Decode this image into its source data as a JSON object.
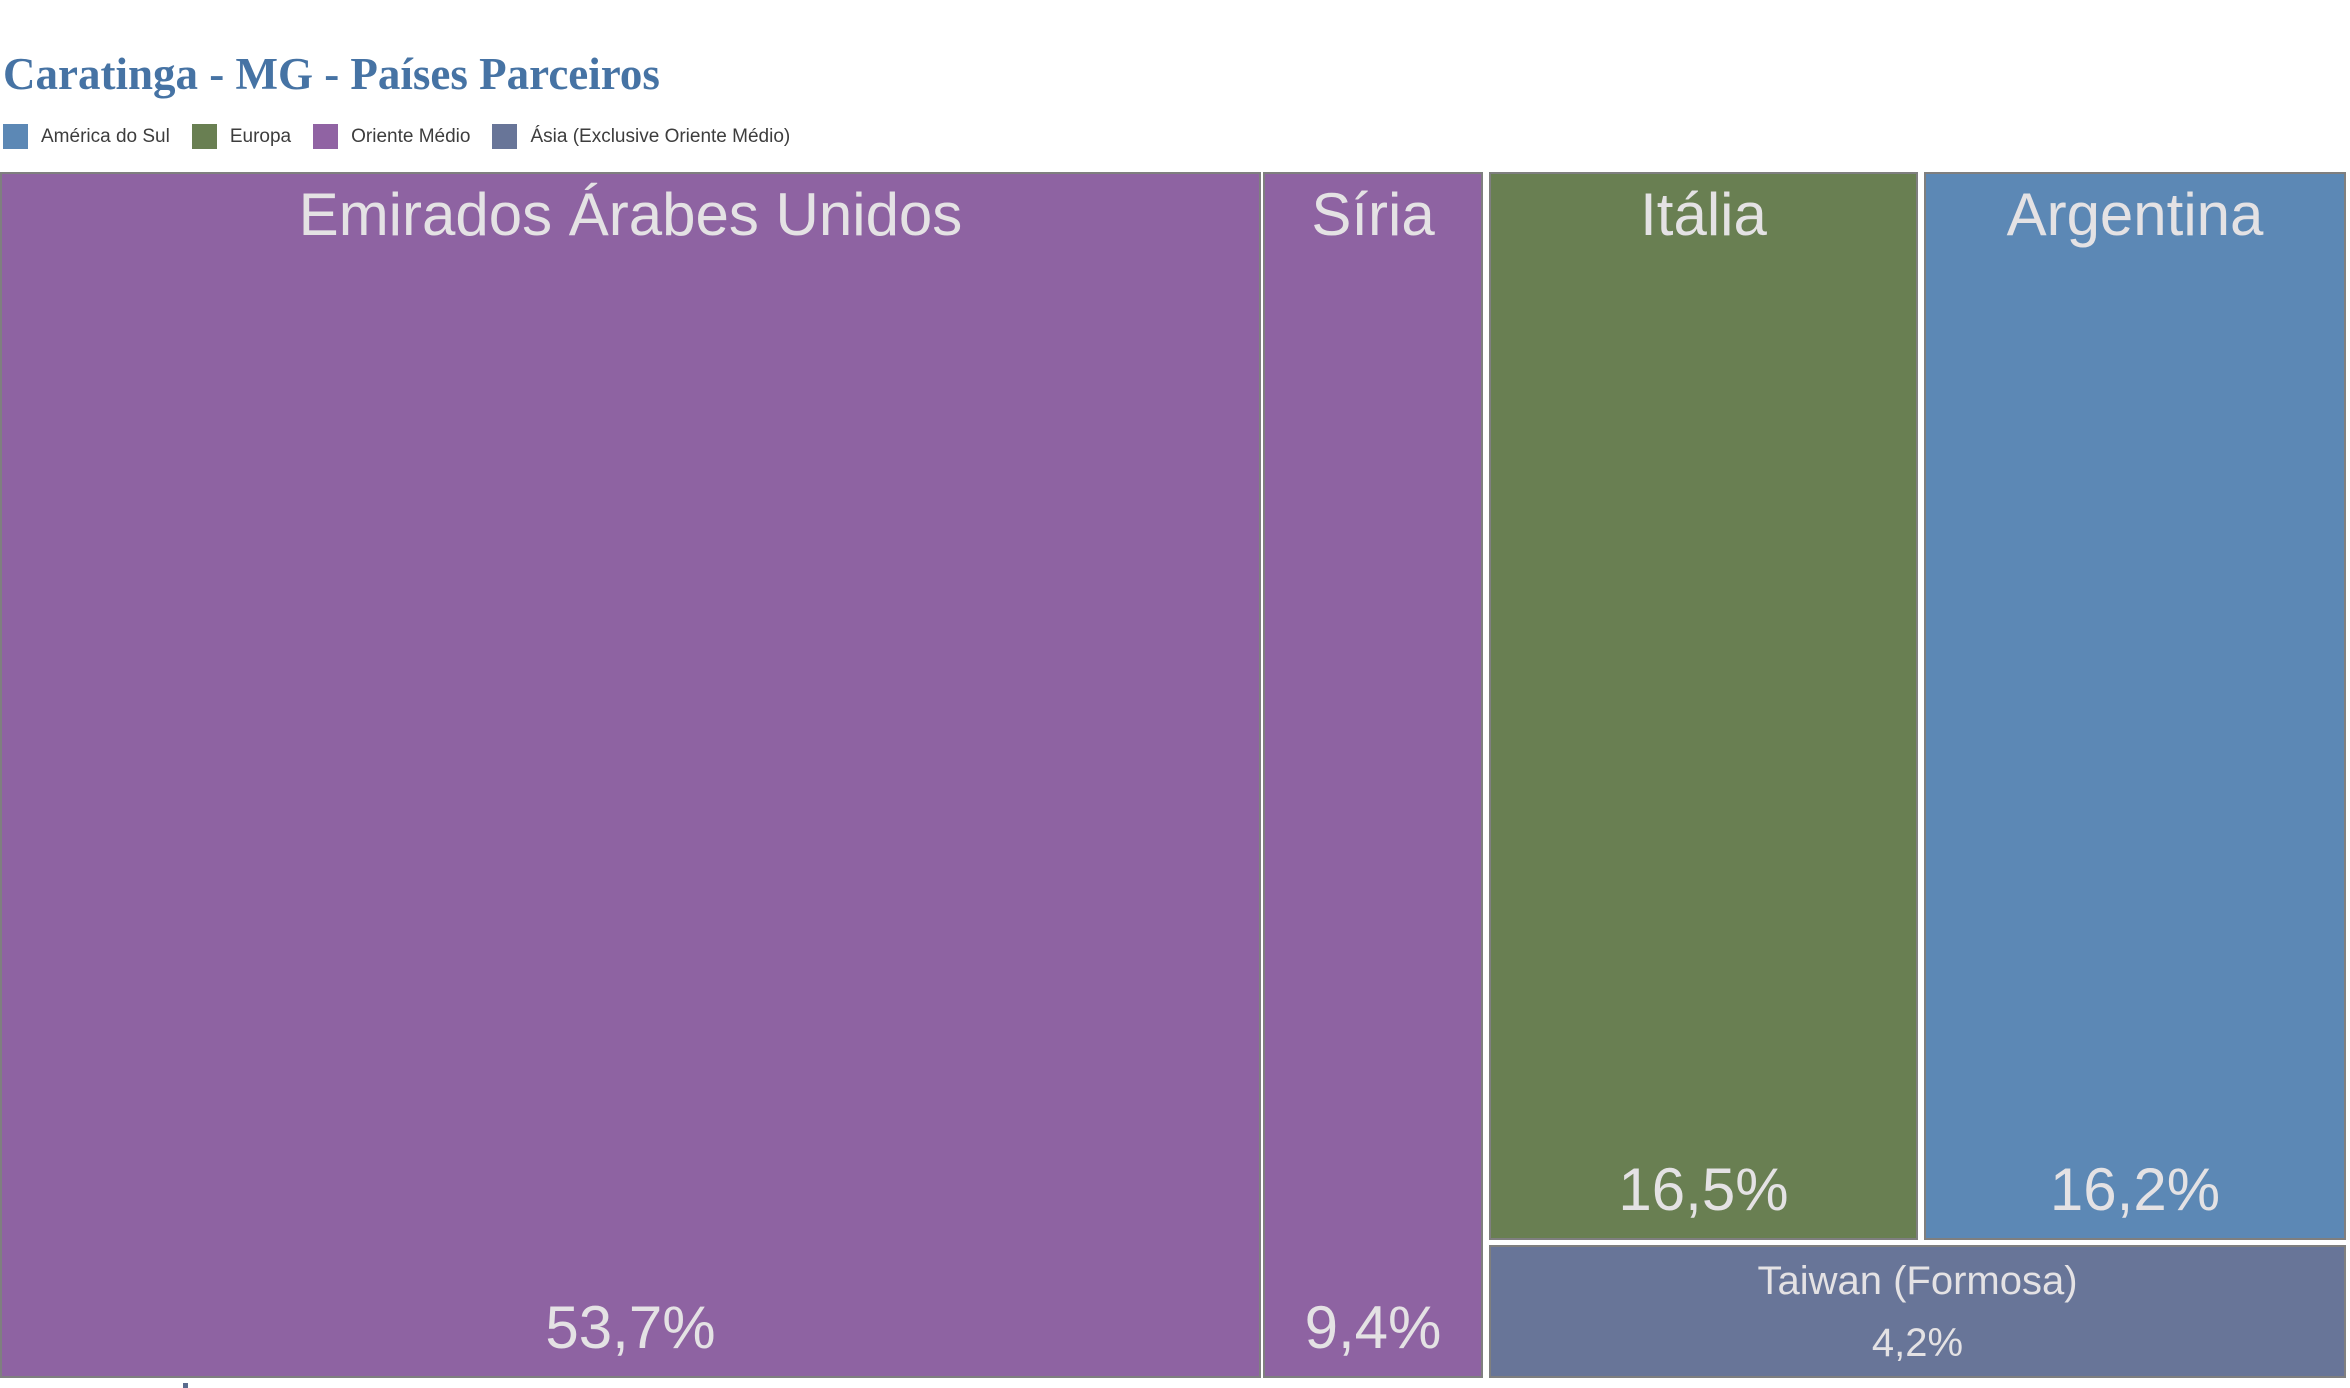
{
  "title": "Caratinga - MG - Países Parceiros",
  "legend": {
    "items": [
      {
        "label": "América do Sul",
        "color": "#5C88B5"
      },
      {
        "label": "Europa",
        "color": "#697F52"
      },
      {
        "label": "Oriente Médio",
        "color": "#9063A3"
      },
      {
        "label": "Ásia (Exclusive Oriente Médio)",
        "color": "#687598"
      }
    ]
  },
  "chart_data": {
    "type": "treemap",
    "title": "Caratinga - MG - Países Parceiros",
    "value_unit": "%",
    "legend_position": "top-left",
    "groups": [
      {
        "name": "América do Sul",
        "color": "#5C88B5"
      },
      {
        "name": "Europa",
        "color": "#697F52"
      },
      {
        "name": "Oriente Médio",
        "color": "#9063A3"
      },
      {
        "name": "Ásia (Exclusive Oriente Médio)",
        "color": "#687598"
      }
    ],
    "items": [
      {
        "name": "Emirados Árabes Unidos",
        "value": 53.7,
        "value_label": "53,7%",
        "group": "Oriente Médio",
        "color": "#8E63A2"
      },
      {
        "name": "Síria",
        "value": 9.4,
        "value_label": "9,4%",
        "group": "Oriente Médio",
        "color": "#8E63A2"
      },
      {
        "name": "Itália",
        "value": 16.5,
        "value_label": "16,5%",
        "group": "Europa",
        "color": "#697F52"
      },
      {
        "name": "Argentina",
        "value": 16.2,
        "value_label": "16,2%",
        "group": "América do Sul",
        "color": "#5C88B5"
      },
      {
        "name": "Taiwan (Formosa)",
        "value": 4.2,
        "value_label": "4,2%",
        "group": "Ásia (Exclusive Oriente Médio)",
        "color": "#687598"
      }
    ]
  }
}
